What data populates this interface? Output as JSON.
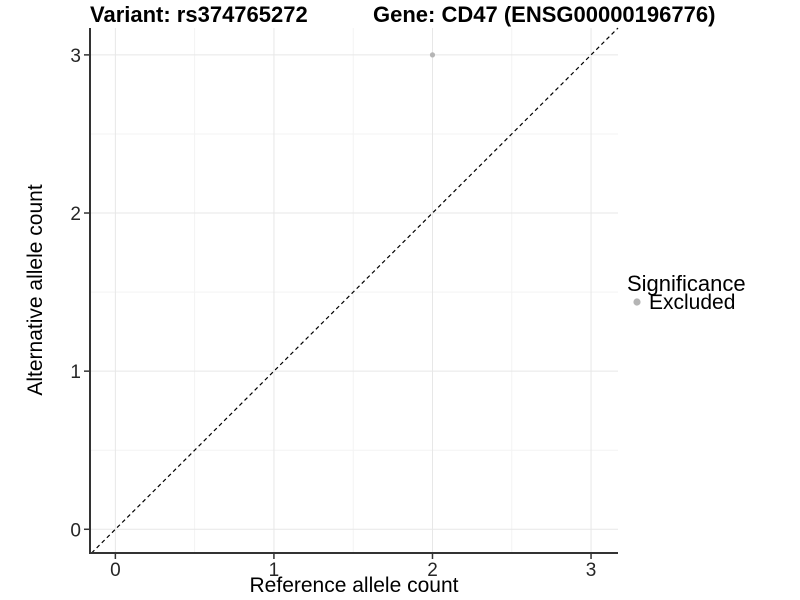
{
  "chart_data": {
    "type": "scatter",
    "titles": {
      "left": "Variant: rs374765272",
      "right": "Gene: CD47 (ENSG00000196776)"
    },
    "xlabel": "Reference allele count",
    "ylabel": "Alternative allele count",
    "x_tick_values": [
      0,
      1,
      2,
      3
    ],
    "y_tick_values": [
      0,
      1,
      2,
      3
    ],
    "xlim": [
      -0.16,
      3.17
    ],
    "ylim": [
      -0.15,
      3.17
    ],
    "minor_gridlines_x": [
      0.5,
      1.5,
      2.5
    ],
    "minor_gridlines_y": [
      0.5,
      1.5,
      2.5
    ],
    "grid": "on",
    "reference_line": {
      "kind": "identity y=x",
      "style": "dashed",
      "color": "#000000"
    },
    "series": [
      {
        "name": "Excluded",
        "color": "#b5b5b5",
        "marker": "circle",
        "points": [
          [
            2,
            3
          ]
        ]
      }
    ],
    "legend": {
      "position": "right",
      "title": "Significance",
      "items": [
        {
          "label": "Excluded",
          "color": "#b5b5b5",
          "marker": "circle"
        }
      ]
    }
  },
  "style_colors": {
    "axis_line": "#333333",
    "tick_mark": "#333333",
    "tick_label": "#262626",
    "grid_major": "#e7e7e7",
    "grid_minor": "#f3f3f3",
    "background": "#ffffff"
  }
}
